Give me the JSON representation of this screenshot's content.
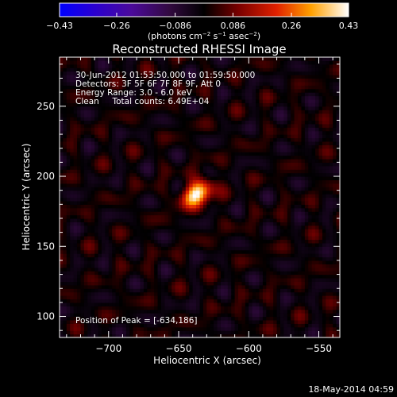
{
  "chart_data": {
    "type": "heatmap",
    "title": "Reconstructed RHESSI Image",
    "xlabel": "Heliocentric X (arcsec)",
    "ylabel": "Heliocentric Y (arcsec)",
    "xlim": [
      -735,
      -535
    ],
    "ylim": [
      85,
      285
    ],
    "x_ticks": [
      -700,
      -650,
      -600,
      -550
    ],
    "x_tick_labels": [
      "−700",
      "−650",
      "−600",
      "−550"
    ],
    "y_ticks": [
      100,
      150,
      200,
      250
    ],
    "y_tick_labels": [
      "100",
      "150",
      "200",
      "250"
    ],
    "colorbar": {
      "range": [
        -0.43,
        0.43
      ],
      "ticks": [
        -0.43,
        -0.26,
        -0.086,
        0.086,
        0.26,
        0.43
      ],
      "tick_labels": [
        "−0.43",
        "−0.26",
        "−0.086",
        "0.086",
        "0.26",
        "0.43"
      ],
      "unit_main": "(photons cm",
      "unit_sup1": "−2",
      "unit_mid": " s",
      "unit_sup2": "−1",
      "unit_mid2": " asec",
      "unit_sup3": "−2",
      "unit_end": ")",
      "colormap": "fire (blue-purple-red-orange-yellow-white)"
    },
    "peak": {
      "x": -634,
      "y": 186
    },
    "source": {
      "x": -637,
      "y": 188,
      "sx": 8,
      "sy": 5.5,
      "angle_deg": 35,
      "peak_value": 0.43
    },
    "annotations": [
      "30-Jun-2012 01:53:50.000 to 01:59:50.000",
      "Detectors: 3F 5F 6F 7F 8F 9F, Att 0",
      "Energy Range: 3.0 - 6.0 keV",
      "Clean     Total counts: 6.49E+04"
    ],
    "peak_label": "Position of Peak = [-634,186]",
    "grid": false
  },
  "footer": {
    "timestamp": "18-May-2014 04:59"
  },
  "colors": {
    "background": "#000000",
    "foreground": "#ffffff"
  }
}
